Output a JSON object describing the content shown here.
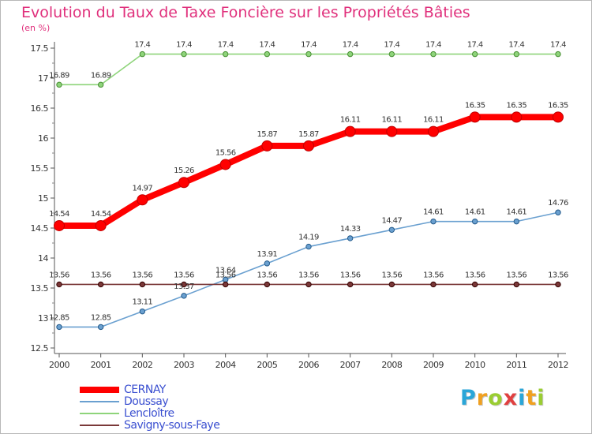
{
  "chart_data": {
    "type": "line",
    "title": "Evolution du Taux de Taxe Foncière sur les Propriétés Bâties",
    "unit_label": "(en %)",
    "x": [
      "2000",
      "2001",
      "2002",
      "2003",
      "2004",
      "2005",
      "2006",
      "2007",
      "2008",
      "2009",
      "2010",
      "2011",
      "2012"
    ],
    "ylim": [
      12.5,
      17.5
    ],
    "yticks": [
      "12.5",
      "13",
      "13.5",
      "14",
      "14.5",
      "15",
      "15.5",
      "16",
      "16.5",
      "17",
      "17.5"
    ],
    "grid": false,
    "legend_position": "bottom-left",
    "series": [
      {
        "name": "CERNAY",
        "color": "#ff0000",
        "emphasis": true,
        "values": [
          14.54,
          14.54,
          14.97,
          15.26,
          15.56,
          15.87,
          15.87,
          16.11,
          16.11,
          16.11,
          16.35,
          16.35,
          16.35
        ],
        "labels": [
          "14.54",
          "14.54",
          "14.97",
          "15.26",
          "15.56",
          "15.87",
          "15.87",
          "16.11",
          "16.11",
          "16.11",
          "16.35",
          "16.35",
          "16.35"
        ]
      },
      {
        "name": "Doussay",
        "color": "#6aa0d0",
        "values": [
          12.85,
          12.85,
          13.11,
          13.37,
          13.64,
          13.91,
          14.19,
          14.33,
          14.47,
          14.61,
          14.61,
          14.61,
          14.76
        ],
        "labels": [
          "12.85",
          "12.85",
          "13.11",
          "13.37",
          "13.64",
          "13.91",
          "14.19",
          "14.33",
          "14.47",
          "14.61",
          "14.61",
          "14.61",
          "14.76"
        ]
      },
      {
        "name": "Lencloître",
        "color": "#8ed47a",
        "values": [
          16.89,
          16.89,
          17.4,
          17.4,
          17.4,
          17.4,
          17.4,
          17.4,
          17.4,
          17.4,
          17.4,
          17.4,
          17.4
        ],
        "labels": [
          "16.89",
          "16.89",
          "17.4",
          "17.4",
          "17.4",
          "17.4",
          "17.4",
          "17.4",
          "17.4",
          "17.4",
          "17.4",
          "17.4",
          "17.4"
        ]
      },
      {
        "name": "Savigny-sous-Faye",
        "color": "#7a3838",
        "values": [
          13.56,
          13.56,
          13.56,
          13.56,
          13.56,
          13.56,
          13.56,
          13.56,
          13.56,
          13.56,
          13.56,
          13.56,
          13.56
        ],
        "labels": [
          "13.56",
          "13.56",
          "13.56",
          "13.56",
          "13.56",
          "13.56",
          "13.56",
          "13.56",
          "13.56",
          "13.56",
          "13.56",
          "13.56",
          "13.56"
        ]
      }
    ]
  },
  "brand": {
    "letters": [
      "P",
      "r",
      "o",
      "x",
      "i",
      "t",
      "i"
    ],
    "colors": [
      "#2aa6d8",
      "#f0a020",
      "#9acd32",
      "#e04040",
      "#2aa6d8",
      "#f0a020",
      "#9acd32"
    ]
  }
}
